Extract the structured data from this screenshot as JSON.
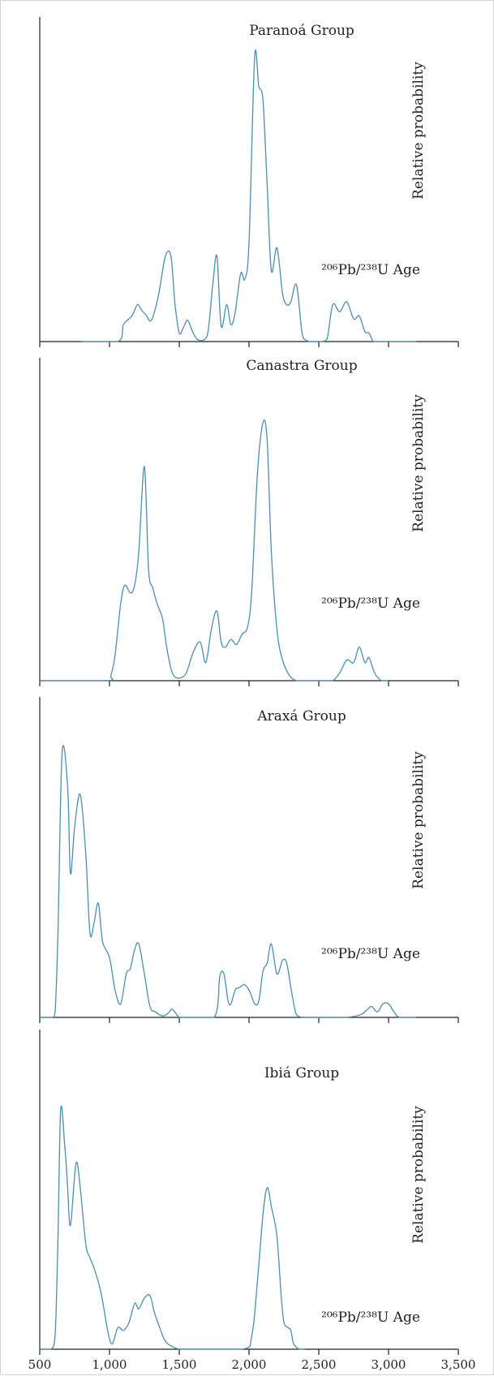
{
  "chart_data": {
    "type": "line",
    "x_label": "²⁰⁶Pb/²³⁸U Age",
    "y_label": "Relative probability",
    "x_range": [
      500,
      3500
    ],
    "x_ticks": [
      500,
      1000,
      1500,
      2000,
      2500,
      3000,
      3500
    ],
    "x_tick_labels": [
      "500",
      "1,000",
      "1,500",
      "2,000",
      "2,500",
      "3,000",
      "3,500"
    ],
    "panels": [
      {
        "title": "Paranoá Group",
        "x": [
          800,
          1060,
          1100,
          1160,
          1200,
          1230,
          1260,
          1300,
          1350,
          1400,
          1440,
          1470,
          1500,
          1530,
          1560,
          1600,
          1640,
          1700,
          1740,
          1770,
          1800,
          1840,
          1870,
          1900,
          1940,
          1970,
          2000,
          2040,
          2070,
          2100,
          2130,
          2160,
          2200,
          2240,
          2270,
          2300,
          2340,
          2380,
          2410,
          2440,
          2480,
          2520,
          2560,
          2600,
          2650,
          2700,
          2750,
          2790,
          2830,
          2860,
          2890,
          2920,
          2950,
          2990,
          3020,
          3060,
          3200
        ],
        "y": [
          0,
          0,
          0.06,
          0.09,
          0.13,
          0.11,
          0.095,
          0.075,
          0.16,
          0.3,
          0.3,
          0.13,
          0.03,
          0.05,
          0.075,
          0.03,
          0.005,
          0.02,
          0.2,
          0.3,
          0.055,
          0.13,
          0.06,
          0.1,
          0.24,
          0.22,
          0.35,
          1.0,
          0.9,
          0.85,
          0.55,
          0.25,
          0.33,
          0.17,
          0.13,
          0.14,
          0.2,
          0.03,
          0.005,
          0,
          0,
          0,
          0.01,
          0.13,
          0.105,
          0.14,
          0.08,
          0.09,
          0.035,
          0.03,
          0,
          0,
          0,
          0,
          0,
          0,
          0
        ]
      },
      {
        "title": "Canastra Group",
        "x": [
          500,
          980,
          1010,
          1040,
          1080,
          1110,
          1150,
          1180,
          1210,
          1250,
          1280,
          1310,
          1340,
          1380,
          1410,
          1450,
          1500,
          1550,
          1600,
          1650,
          1690,
          1730,
          1770,
          1800,
          1830,
          1870,
          1910,
          1950,
          1990,
          2020,
          2060,
          2100,
          2130,
          2160,
          2200,
          2240,
          2290,
          2340,
          2390,
          2440,
          2500,
          2560,
          2600,
          2650,
          2700,
          2750,
          2790,
          2830,
          2860,
          2900,
          2950,
          3000
        ],
        "y": [
          0,
          0,
          0.02,
          0.1,
          0.3,
          0.37,
          0.34,
          0.37,
          0.5,
          0.83,
          0.43,
          0.36,
          0.3,
          0.24,
          0.13,
          0.03,
          0.01,
          0.03,
          0.11,
          0.15,
          0.07,
          0.2,
          0.27,
          0.15,
          0.13,
          0.16,
          0.14,
          0.18,
          0.21,
          0.35,
          0.8,
          1.0,
          0.93,
          0.5,
          0.2,
          0.08,
          0.02,
          0,
          0,
          0,
          0,
          0,
          0,
          0.03,
          0.08,
          0.07,
          0.13,
          0.07,
          0.09,
          0.03,
          0,
          0
        ]
      },
      {
        "title": "Araxá Group",
        "x": [
          500,
          590,
          610,
          630,
          660,
          700,
          720,
          750,
          790,
          830,
          860,
          890,
          920,
          950,
          1000,
          1040,
          1080,
          1120,
          1150,
          1180,
          1210,
          1250,
          1290,
          1330,
          1380,
          1420,
          1450,
          1500,
          1550,
          1750,
          1790,
          1820,
          1850,
          1870,
          1900,
          1930,
          1970,
          2010,
          2040,
          2070,
          2100,
          2130,
          2160,
          2200,
          2240,
          2270,
          2300,
          2340,
          2400,
          2500,
          2600,
          2700,
          2800,
          2850,
          2880,
          2920,
          2960,
          3000,
          3040,
          3080,
          3200
        ],
        "y": [
          0,
          0,
          0.02,
          0.3,
          0.97,
          0.85,
          0.53,
          0.7,
          0.82,
          0.6,
          0.31,
          0.35,
          0.42,
          0.28,
          0.22,
          0.1,
          0.05,
          0.16,
          0.18,
          0.25,
          0.27,
          0.16,
          0.04,
          0.02,
          0.005,
          0.015,
          0.03,
          0,
          0,
          0,
          0.15,
          0.16,
          0.06,
          0.05,
          0.1,
          0.11,
          0.12,
          0.09,
          0.05,
          0.06,
          0.17,
          0.2,
          0.27,
          0.16,
          0.21,
          0.2,
          0.11,
          0.01,
          0,
          0,
          0,
          0,
          0.01,
          0.03,
          0.04,
          0.02,
          0.05,
          0.05,
          0.02,
          0,
          0
        ]
      },
      {
        "title": "Ibiá Group",
        "x": [
          500,
          580,
          610,
          630,
          650,
          680,
          700,
          720,
          760,
          790,
          830,
          860,
          890,
          920,
          950,
          990,
          1020,
          1060,
          1100,
          1140,
          1180,
          1210,
          1250,
          1290,
          1320,
          1360,
          1400,
          1450,
          1500,
          1550,
          1950,
          2020,
          2060,
          2100,
          2130,
          2160,
          2200,
          2230,
          2250,
          2280,
          2300,
          2320,
          2360,
          2400
        ],
        "y": [
          0,
          0,
          0.05,
          0.4,
          0.89,
          0.75,
          0.6,
          0.46,
          0.69,
          0.6,
          0.39,
          0.34,
          0.3,
          0.25,
          0.18,
          0.06,
          0.02,
          0.08,
          0.07,
          0.1,
          0.17,
          0.15,
          0.19,
          0.2,
          0.14,
          0.08,
          0.03,
          0.01,
          0,
          0,
          0,
          0.05,
          0.25,
          0.5,
          0.6,
          0.53,
          0.42,
          0.2,
          0.1,
          0.08,
          0.07,
          0.02,
          0,
          0
        ]
      }
    ]
  }
}
